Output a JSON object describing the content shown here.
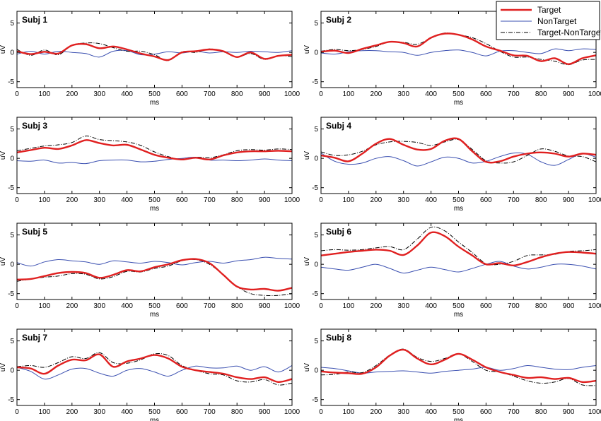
{
  "figure": {
    "legend": {
      "position": "top-right",
      "entries": [
        "Target",
        "NonTarget",
        "Target-NonTarget"
      ]
    },
    "colors": {
      "Target": "#e02020",
      "NonTarget": "#3a4fb0",
      "Target-NonTarget": "#000000"
    }
  },
  "chart_data": [
    {
      "type": "line",
      "title": "Subj 1",
      "xlabel": "ms",
      "ylabel": "uV",
      "xlim": [
        0,
        1000
      ],
      "ylim": [
        -6,
        7
      ],
      "xticks": [
        "0",
        "100",
        "200",
        "300",
        "400",
        "500",
        "600",
        "700",
        "800",
        "900",
        "1000"
      ],
      "yticks": [
        "-5",
        "0",
        "5"
      ],
      "x": [
        0,
        50,
        100,
        150,
        200,
        250,
        300,
        350,
        400,
        450,
        500,
        550,
        600,
        650,
        700,
        750,
        800,
        850,
        900,
        950,
        1000
      ],
      "series": [
        {
          "name": "Target",
          "values": [
            0.2,
            -0.3,
            0.1,
            -0.2,
            1.2,
            1.4,
            0.7,
            1.0,
            0.5,
            -0.2,
            -0.7,
            -1.3,
            0.0,
            0.2,
            0.5,
            0.2,
            -0.8,
            0.0,
            -1.1,
            -0.6,
            -0.4
          ]
        },
        {
          "name": "NonTarget",
          "values": [
            -0.3,
            0.2,
            -0.3,
            0.2,
            0.0,
            -0.2,
            -0.8,
            0.2,
            0.3,
            -0.4,
            -0.3,
            0.1,
            -0.1,
            0.2,
            -0.1,
            0.1,
            0.0,
            0.2,
            0.1,
            0.0,
            0.3
          ]
        },
        {
          "name": "Target-NonTarget",
          "values": [
            0.5,
            -0.5,
            0.4,
            -0.4,
            1.2,
            1.6,
            1.5,
            0.8,
            0.2,
            0.2,
            -0.4,
            -1.4,
            0.1,
            0.0,
            0.6,
            0.1,
            -0.8,
            -0.2,
            -1.2,
            -0.6,
            -0.7
          ]
        }
      ]
    },
    {
      "type": "line",
      "title": "Subj 2",
      "xlabel": "ms",
      "ylabel": "uV",
      "xlim": [
        0,
        1000
      ],
      "ylim": [
        -6,
        7
      ],
      "xticks": [
        "0",
        "100",
        "200",
        "300",
        "400",
        "500",
        "600",
        "700",
        "800",
        "900",
        "1000"
      ],
      "yticks": [
        "-5",
        "0",
        "5"
      ],
      "x": [
        0,
        50,
        100,
        150,
        200,
        250,
        300,
        350,
        400,
        450,
        500,
        550,
        600,
        650,
        700,
        750,
        800,
        850,
        900,
        950,
        1000
      ],
      "series": [
        {
          "name": "Target",
          "values": [
            0.1,
            0.3,
            -0.1,
            0.6,
            1.2,
            1.8,
            1.6,
            1.0,
            2.5,
            3.2,
            3.0,
            2.2,
            1.0,
            0.3,
            -0.5,
            -0.6,
            -1.5,
            -1.0,
            -2.0,
            -1.0,
            -0.5
          ]
        },
        {
          "name": "NonTarget",
          "values": [
            -0.1,
            -0.3,
            0.1,
            0.3,
            0.3,
            0.1,
            0.0,
            -0.5,
            0.0,
            0.3,
            0.4,
            0.0,
            -0.6,
            0.2,
            0.3,
            0.0,
            -0.2,
            0.6,
            0.3,
            0.6,
            0.5
          ]
        },
        {
          "name": "Target-NonTarget",
          "values": [
            0.2,
            0.5,
            0.3,
            0.5,
            1.0,
            1.8,
            1.7,
            1.4,
            2.4,
            3.3,
            3.0,
            2.5,
            1.5,
            0.2,
            -0.8,
            -0.8,
            -1.2,
            -1.5,
            -2.1,
            -1.3,
            -1.2
          ]
        }
      ]
    },
    {
      "type": "line",
      "title": "Subj 3",
      "xlabel": "ms",
      "ylabel": "uV",
      "xlim": [
        0,
        1000
      ],
      "ylim": [
        -6,
        7
      ],
      "xticks": [
        "0",
        "100",
        "200",
        "300",
        "400",
        "500",
        "600",
        "700",
        "800",
        "900",
        "1000"
      ],
      "yticks": [
        "-5",
        "0",
        "5"
      ],
      "x": [
        0,
        50,
        100,
        150,
        200,
        250,
        300,
        350,
        400,
        450,
        500,
        550,
        600,
        650,
        700,
        750,
        800,
        850,
        900,
        950,
        1000
      ],
      "series": [
        {
          "name": "Target",
          "values": [
            1.0,
            1.4,
            1.8,
            1.6,
            2.2,
            3.1,
            2.6,
            2.2,
            2.3,
            1.5,
            0.6,
            0.1,
            -0.2,
            0.1,
            -0.2,
            0.5,
            1.0,
            1.2,
            1.2,
            1.3,
            1.2
          ]
        },
        {
          "name": "NonTarget",
          "values": [
            -0.4,
            -0.5,
            -0.3,
            -0.8,
            -0.7,
            -0.9,
            -0.4,
            -0.3,
            -0.3,
            -0.6,
            -0.5,
            -0.2,
            0.0,
            0.2,
            -0.3,
            -0.3,
            -0.4,
            -0.3,
            -0.1,
            -0.3,
            -0.4
          ]
        },
        {
          "name": "Target-NonTarget",
          "values": [
            1.3,
            1.7,
            2.1,
            2.3,
            2.7,
            3.8,
            3.2,
            3.0,
            2.8,
            2.2,
            1.1,
            0.3,
            -0.2,
            0.2,
            0.1,
            0.6,
            1.3,
            1.5,
            1.4,
            1.6,
            1.5
          ]
        }
      ]
    },
    {
      "type": "line",
      "title": "Subj 4",
      "xlabel": "ms",
      "ylabel": "uV",
      "xlim": [
        0,
        1000
      ],
      "ylim": [
        -6,
        7
      ],
      "xticks": [
        "0",
        "100",
        "200",
        "300",
        "400",
        "500",
        "600",
        "700",
        "800",
        "900",
        "1000"
      ],
      "yticks": [
        "-5",
        "0",
        "5"
      ],
      "x": [
        0,
        50,
        100,
        150,
        200,
        250,
        300,
        350,
        400,
        450,
        500,
        550,
        600,
        650,
        700,
        750,
        800,
        850,
        900,
        950,
        1000
      ],
      "series": [
        {
          "name": "Target",
          "values": [
            0.5,
            0.1,
            -0.5,
            0.8,
            2.5,
            3.3,
            2.3,
            1.5,
            1.6,
            3.0,
            3.3,
            1.2,
            -0.6,
            -0.5,
            0.3,
            0.8,
            1.0,
            0.8,
            0.3,
            0.8,
            0.6
          ]
        },
        {
          "name": "NonTarget",
          "values": [
            0.9,
            -0.5,
            -1.0,
            -0.8,
            0.0,
            0.3,
            -0.4,
            -1.3,
            -0.6,
            0.2,
            0.0,
            -0.8,
            -0.5,
            0.3,
            0.9,
            0.7,
            -0.6,
            -1.2,
            -0.2,
            0.8,
            0.2
          ]
        },
        {
          "name": "Target-NonTarget",
          "values": [
            1.1,
            0.5,
            0.6,
            1.2,
            2.3,
            2.8,
            2.9,
            2.7,
            2.2,
            2.8,
            3.2,
            1.5,
            -0.4,
            -0.8,
            -0.6,
            0.5,
            1.6,
            1.2,
            0.4,
            0.3,
            -0.6
          ]
        }
      ]
    },
    {
      "type": "line",
      "title": "Subj 5",
      "xlabel": "ms",
      "ylabel": "uV",
      "xlim": [
        0,
        1000
      ],
      "ylim": [
        -6,
        7
      ],
      "xticks": [
        "0",
        "100",
        "200",
        "300",
        "400",
        "500",
        "600",
        "700",
        "800",
        "900",
        "1000"
      ],
      "yticks": [
        "-5",
        "0",
        "5"
      ],
      "x": [
        0,
        50,
        100,
        150,
        200,
        250,
        300,
        350,
        400,
        450,
        500,
        550,
        600,
        650,
        700,
        750,
        800,
        850,
        900,
        950,
        1000
      ],
      "series": [
        {
          "name": "Target",
          "values": [
            -2.6,
            -2.5,
            -2.0,
            -1.5,
            -1.3,
            -1.5,
            -2.3,
            -1.8,
            -1.0,
            -1.2,
            -0.5,
            0.0,
            0.7,
            0.9,
            0.2,
            -1.8,
            -3.8,
            -4.3,
            -4.2,
            -4.5,
            -4.0
          ]
        },
        {
          "name": "NonTarget",
          "values": [
            0.3,
            -0.3,
            0.4,
            0.8,
            0.6,
            0.4,
            0.0,
            0.6,
            0.4,
            0.2,
            0.5,
            0.3,
            -0.1,
            0.3,
            0.5,
            0.2,
            0.6,
            0.8,
            1.2,
            1.0,
            0.9
          ]
        },
        {
          "name": "Target-NonTarget",
          "values": [
            -2.9,
            -2.5,
            -2.2,
            -2.0,
            -1.6,
            -1.7,
            -2.5,
            -2.1,
            -1.2,
            -1.3,
            -0.7,
            -0.3,
            0.6,
            0.8,
            0.0,
            -1.8,
            -3.8,
            -5.0,
            -5.3,
            -5.3,
            -5.0
          ]
        }
      ]
    },
    {
      "type": "line",
      "title": "Subj 6",
      "xlabel": "ms",
      "ylabel": "uV",
      "xlim": [
        0,
        1000
      ],
      "ylim": [
        -6,
        7
      ],
      "xticks": [
        "0",
        "100",
        "200",
        "300",
        "400",
        "500",
        "600",
        "700",
        "800",
        "900",
        "1000"
      ],
      "yticks": [
        "-5",
        "0",
        "5"
      ],
      "x": [
        0,
        50,
        100,
        150,
        200,
        250,
        300,
        350,
        400,
        450,
        500,
        550,
        600,
        650,
        700,
        750,
        800,
        850,
        900,
        950,
        1000
      ],
      "series": [
        {
          "name": "Target",
          "values": [
            1.5,
            1.8,
            2.1,
            2.3,
            2.5,
            2.3,
            1.6,
            3.2,
            5.4,
            4.8,
            3.0,
            1.5,
            0.0,
            0.2,
            -0.2,
            0.4,
            1.2,
            1.8,
            2.1,
            2.0,
            1.8
          ]
        },
        {
          "name": "NonTarget",
          "values": [
            -0.5,
            -0.8,
            -1.0,
            -0.5,
            0.0,
            -0.7,
            -1.5,
            -1.0,
            -0.5,
            -0.9,
            -1.3,
            -0.7,
            0.0,
            0.5,
            -0.3,
            -0.8,
            -0.5,
            0.0,
            0.0,
            -0.3,
            -0.8
          ]
        },
        {
          "name": "Target-NonTarget",
          "values": [
            2.3,
            2.5,
            2.4,
            2.5,
            2.8,
            3.0,
            2.5,
            4.3,
            6.3,
            5.7,
            3.8,
            2.0,
            0.1,
            0.0,
            0.5,
            1.5,
            1.6,
            1.7,
            2.2,
            2.3,
            2.5
          ]
        }
      ]
    },
    {
      "type": "line",
      "title": "Subj 7",
      "xlabel": "ms",
      "ylabel": "uV",
      "xlim": [
        0,
        1000
      ],
      "ylim": [
        -6,
        7
      ],
      "xticks": [
        "0",
        "100",
        "200",
        "300",
        "400",
        "500",
        "600",
        "700",
        "800",
        "900",
        "1000"
      ],
      "yticks": [
        "-5",
        "0",
        "5"
      ],
      "x": [
        0,
        50,
        100,
        150,
        200,
        250,
        300,
        350,
        400,
        450,
        500,
        550,
        600,
        650,
        700,
        750,
        800,
        850,
        900,
        950,
        1000
      ],
      "series": [
        {
          "name": "Target",
          "values": [
            0.5,
            0.3,
            -0.6,
            0.8,
            1.8,
            1.7,
            2.7,
            0.6,
            1.5,
            2.0,
            2.6,
            2.0,
            0.6,
            0.0,
            -0.3,
            -0.6,
            -1.2,
            -1.5,
            -1.2,
            -2.0,
            -1.5
          ]
        },
        {
          "name": "NonTarget",
          "values": [
            0.5,
            -0.2,
            -1.5,
            -0.8,
            0.2,
            0.3,
            -0.5,
            -1.0,
            0.0,
            0.3,
            -0.3,
            -1.0,
            0.0,
            0.7,
            0.4,
            0.4,
            0.7,
            0.0,
            0.6,
            -0.3,
            0.8
          ]
        },
        {
          "name": "Target-NonTarget",
          "values": [
            0.6,
            0.8,
            0.5,
            1.3,
            2.3,
            2.0,
            3.0,
            1.3,
            1.2,
            1.8,
            2.8,
            2.5,
            0.8,
            0.0,
            -0.6,
            -0.8,
            -1.8,
            -2.0,
            -1.6,
            -2.5,
            -2.2
          ]
        }
      ]
    },
    {
      "type": "line",
      "title": "Subj 8",
      "xlabel": "ms",
      "ylabel": "uV",
      "xlim": [
        0,
        1000
      ],
      "ylim": [
        -6,
        7
      ],
      "xticks": [
        "0",
        "100",
        "200",
        "300",
        "400",
        "500",
        "600",
        "700",
        "800",
        "900",
        "1000"
      ],
      "yticks": [
        "-5",
        "0",
        "5"
      ],
      "x": [
        0,
        50,
        100,
        150,
        200,
        250,
        300,
        350,
        400,
        450,
        500,
        550,
        600,
        650,
        700,
        750,
        800,
        850,
        900,
        950,
        1000
      ],
      "series": [
        {
          "name": "Target",
          "values": [
            -0.2,
            -0.4,
            -0.5,
            -0.6,
            0.5,
            2.5,
            3.5,
            2.0,
            1.0,
            1.8,
            2.8,
            1.8,
            0.5,
            -0.3,
            -0.8,
            -1.3,
            -1.2,
            -1.5,
            -1.3,
            -2.0,
            -1.8
          ]
        },
        {
          "name": "NonTarget",
          "values": [
            0.5,
            0.3,
            -0.1,
            -0.5,
            -0.3,
            -0.2,
            -0.1,
            -0.3,
            -0.5,
            -0.2,
            0.0,
            0.2,
            0.5,
            0.0,
            0.3,
            0.8,
            0.5,
            0.2,
            0.1,
            0.5,
            0.8
          ]
        },
        {
          "name": "Target-NonTarget",
          "values": [
            -0.8,
            -0.7,
            -0.3,
            -0.4,
            0.8,
            2.6,
            3.6,
            2.2,
            1.5,
            2.0,
            2.8,
            1.5,
            0.0,
            -0.3,
            -1.0,
            -1.8,
            -2.2,
            -2.0,
            -1.4,
            -2.5,
            -2.6
          ]
        }
      ]
    }
  ]
}
